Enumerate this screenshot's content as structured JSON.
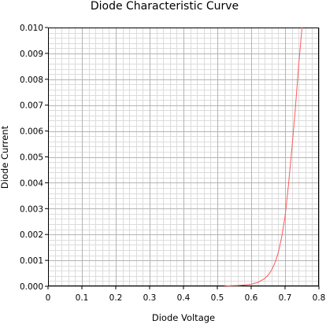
{
  "chart_data": {
    "type": "line",
    "title": "Diode Characteristic Curve",
    "xlabel": "Diode Voltage",
    "ylabel": "Diode Current",
    "xlim": [
      0,
      0.8
    ],
    "ylim": [
      0,
      0.01
    ],
    "x_ticks": [
      "0",
      "0.1",
      "0.2",
      "0.3",
      "0.4",
      "0.5",
      "0.6",
      "0.7",
      "0.8"
    ],
    "y_ticks": [
      "0.000",
      "0.001",
      "0.002",
      "0.003",
      "0.004",
      "0.005",
      "0.006",
      "0.007",
      "0.008",
      "0.009",
      "0.010"
    ],
    "grid": true,
    "series": [
      {
        "color": "#ff5a5a",
        "x": [
          0.52,
          0.54,
          0.56,
          0.58,
          0.6,
          0.62,
          0.64,
          0.65,
          0.66,
          0.67,
          0.68,
          0.69,
          0.7,
          0.71,
          0.72,
          0.73,
          0.74,
          0.75
        ],
        "y": [
          0.0,
          2e-05,
          3e-05,
          5e-05,
          8e-05,
          0.00015,
          0.0003,
          0.00043,
          0.00062,
          0.0009,
          0.0013,
          0.0019,
          0.0027,
          0.0039,
          0.0053,
          0.0068,
          0.0085,
          0.0101
        ]
      }
    ]
  }
}
